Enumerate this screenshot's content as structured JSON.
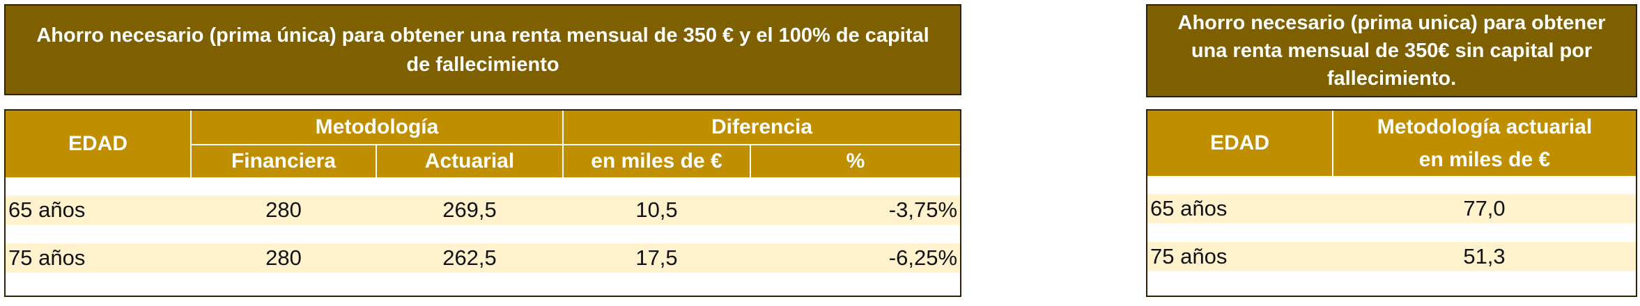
{
  "left": {
    "title": "Ahorro necesario (prima única) para obtener una renta mensual de 350 € y el 100% de capital de fallecimiento",
    "headers": {
      "edad": "EDAD",
      "metodologia": "Metodología",
      "financiera": "Financiera",
      "actuarial": "Actuarial",
      "diferencia": "Diferencia",
      "miles": "en miles de €",
      "pct": "%"
    },
    "rows": [
      {
        "edad": "65 años",
        "financiera": "280",
        "actuarial": "269,5",
        "miles": "10,5",
        "pct": "-3,75%"
      },
      {
        "edad": "75 años",
        "financiera": "280",
        "actuarial": "262,5",
        "miles": "17,5",
        "pct": "-6,25%"
      }
    ]
  },
  "right": {
    "title": "Ahorro necesario (prima unica) para obtener una renta mensual de 350€ sin capital por fallecimiento.",
    "headers": {
      "edad": "EDAD",
      "metodologia": "Metodología  actuarial",
      "miles": "en miles de €"
    },
    "rows": [
      {
        "edad": "65 años",
        "value": "77,0"
      },
      {
        "edad": "75 años",
        "value": "51,3"
      }
    ]
  }
}
